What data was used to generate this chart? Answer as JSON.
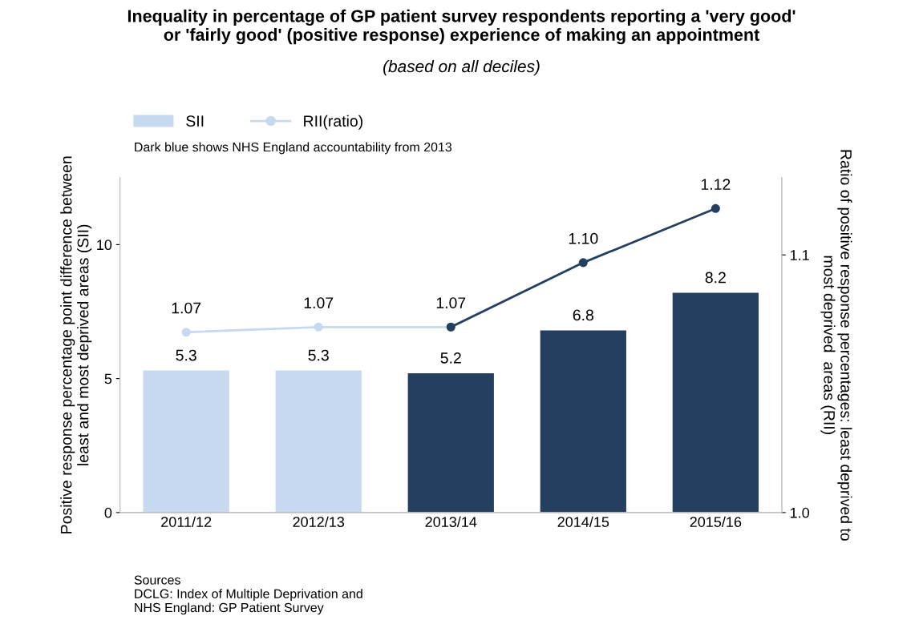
{
  "chart_data": {
    "type": "bar",
    "title": "Inequality in percentage of GP patient survey respondents reporting a 'very good'\nor 'fairly good' (positive response) experience of making an appointment",
    "subtitle": "(based on all deciles)",
    "ylabel": "Positive response percentage point difference between\nleast and most deprived areas (SII)",
    "y2label": "Ratio of positive response percentages: least deprived to\nmost deprived  areas (RII)",
    "categories": [
      "2011/12",
      "2012/13",
      "2013/14",
      "2014/15",
      "2015/16"
    ],
    "series": [
      {
        "name": "SII",
        "color": "#c6d9f1",
        "colors": [
          "#c6d9f1",
          "#c6d9f1",
          "#243f60",
          "#243f60",
          "#243f60"
        ],
        "values": [
          5.3,
          5.3,
          5.2,
          6.8,
          8.2
        ],
        "data_labels": true
      },
      {
        "name": "RII(ratio)",
        "type": "line",
        "axis": "y2",
        "marker": "circle",
        "color": "#c6d9f1",
        "values": [
          1.07,
          1.072,
          1.072,
          null,
          null
        ],
        "value_labels": [
          "1.07",
          "1.07",
          "1.07",
          null,
          null
        ]
      },
      {
        "type": "line",
        "axis": "y2",
        "marker": "circle",
        "color": "#243f60",
        "values": [
          null,
          null,
          1.072,
          1.097,
          1.118
        ],
        "value_labels": [
          null,
          null,
          null,
          "1.10",
          "1.12"
        ]
      }
    ],
    "ylim": [
      0,
      12.5
    ],
    "yticks": [
      0,
      5,
      10
    ],
    "y2lim": [
      1.0,
      1.13
    ],
    "y2ticks": [
      {
        "value": 1.0,
        "label": "1.0"
      },
      {
        "value": 1.1,
        "label": "1.1"
      }
    ],
    "grid": false,
    "legend": "top left",
    "annotations": [
      "Dark blue shows NHS England accountability from 2013",
      "Sources\nDCLG: Index of Multiple Deprivation and\nNHS England: GP Patient Survey"
    ]
  }
}
